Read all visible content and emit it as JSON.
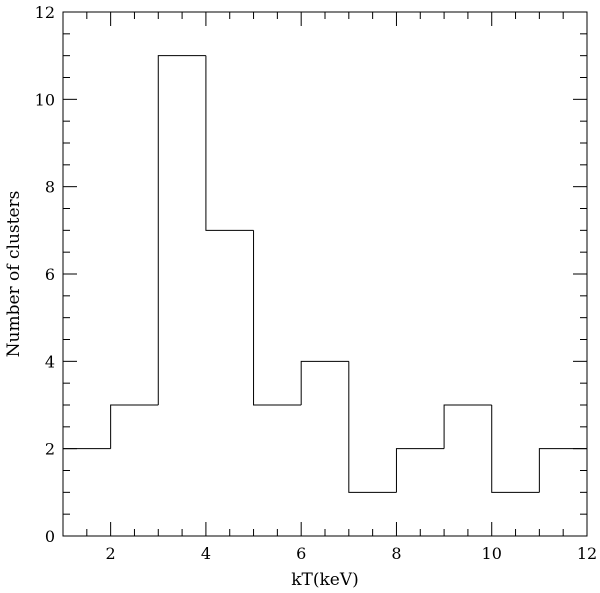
{
  "chart_data": {
    "type": "bar",
    "style": "step-histogram",
    "xlabel": "kT(keV)",
    "ylabel": "Number of clusters",
    "xlim": [
      1,
      12
    ],
    "ylim": [
      0,
      12
    ],
    "grid": false,
    "x_major_ticks": [
      2,
      4,
      6,
      8,
      10,
      12
    ],
    "x_minor_step": 0.5,
    "y_major_ticks": [
      0,
      2,
      4,
      6,
      8,
      10,
      12
    ],
    "y_minor_step": 0.5,
    "bins": [
      {
        "x0": 1,
        "x1": 2,
        "value": 2
      },
      {
        "x0": 2,
        "x1": 3,
        "value": 3
      },
      {
        "x0": 3,
        "x1": 4,
        "value": 11
      },
      {
        "x0": 4,
        "x1": 5,
        "value": 7
      },
      {
        "x0": 5,
        "x1": 6,
        "value": 3
      },
      {
        "x0": 6,
        "x1": 7,
        "value": 4
      },
      {
        "x0": 7,
        "x1": 8,
        "value": 1
      },
      {
        "x0": 8,
        "x1": 9,
        "value": 2
      },
      {
        "x0": 9,
        "x1": 10,
        "value": 3
      },
      {
        "x0": 10,
        "x1": 11,
        "value": 1
      },
      {
        "x0": 11,
        "x1": 12,
        "value": 2
      }
    ]
  }
}
